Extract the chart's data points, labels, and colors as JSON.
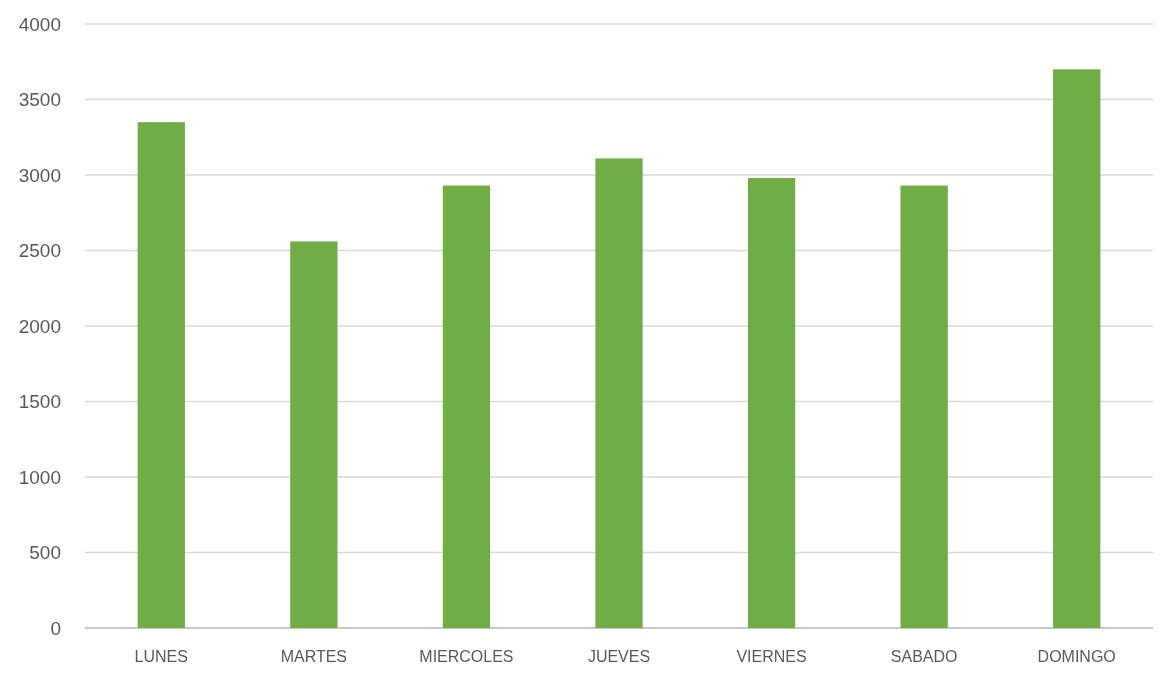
{
  "chart_data": {
    "type": "bar",
    "categories": [
      "LUNES",
      "MARTES",
      "MIERCOLES",
      "JUEVES",
      "VIERNES",
      "SABADO",
      "DOMINGO"
    ],
    "values": [
      3350,
      2560,
      2930,
      3110,
      2980,
      2930,
      3700
    ],
    "color": "#70ad47",
    "ylim": [
      0,
      4000
    ],
    "yticks": [
      0,
      500,
      1000,
      1500,
      2000,
      2500,
      3000,
      3500,
      4000
    ],
    "grid": "y"
  }
}
